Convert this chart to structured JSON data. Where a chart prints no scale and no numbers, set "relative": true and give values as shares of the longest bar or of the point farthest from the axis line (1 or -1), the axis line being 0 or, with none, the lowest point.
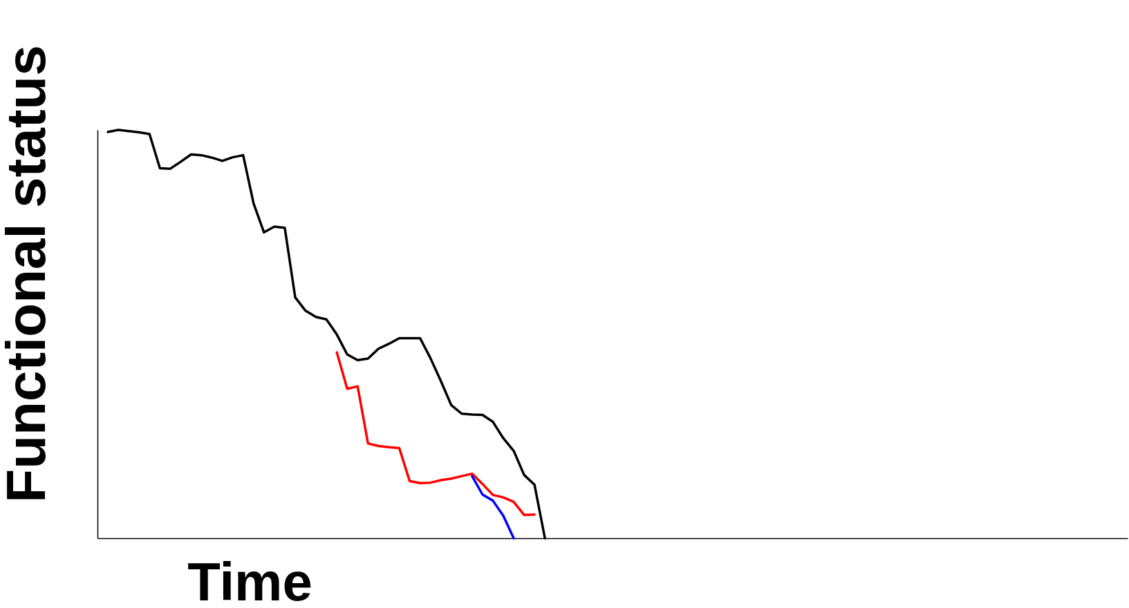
{
  "chart_data": {
    "type": "line",
    "relative": true,
    "xlabel": "Time",
    "ylabel": "Functional status",
    "marker": "none",
    "line_style": "solid",
    "categories": [
      null,
      null,
      null,
      null,
      null,
      null,
      null,
      null,
      null,
      null,
      null,
      null,
      null,
      null,
      null,
      null,
      null,
      null,
      null,
      null,
      null,
      null,
      null,
      null,
      null,
      null,
      null,
      null,
      null,
      null,
      null,
      null,
      null,
      null,
      null,
      null,
      null,
      null,
      null,
      null,
      null,
      null,
      null,
      null,
      null,
      null,
      null,
      null,
      null,
      null,
      null,
      null,
      null,
      null,
      null,
      null,
      null,
      null,
      null,
      null,
      null,
      null,
      null,
      null,
      null,
      null,
      null,
      null,
      null,
      null,
      null,
      null,
      null,
      null,
      null,
      null,
      null,
      null,
      null,
      null,
      null,
      null,
      null,
      null,
      null,
      null,
      null,
      null,
      null,
      null,
      null,
      null,
      null,
      null,
      null,
      null,
      null,
      null,
      null,
      null
    ],
    "series": [
      {
        "color": "#000000",
        "values": [
          null,
          0.995,
          1.0,
          0.997,
          0.994,
          0.99,
          0.906,
          0.905,
          0.922,
          0.94,
          0.938,
          0.932,
          0.924,
          0.933,
          0.938,
          0.82,
          0.749,
          0.763,
          0.76,
          0.59,
          0.557,
          0.542,
          0.536,
          0.499,
          0.45,
          0.436,
          0.44,
          0.464,
          0.476,
          0.49,
          0.49,
          0.49,
          0.441,
          0.385,
          0.326,
          0.305,
          0.303,
          0.302,
          0.285,
          0.245,
          0.214,
          0.155,
          0.131,
          0.0,
          null,
          null,
          null,
          null,
          null,
          null,
          null,
          null,
          null,
          null,
          null,
          null,
          null,
          null,
          null,
          null,
          null,
          null,
          null,
          null,
          null,
          null,
          null,
          null,
          null,
          null,
          null,
          null,
          null,
          null,
          null,
          null,
          null,
          null,
          null,
          null,
          null,
          null,
          null,
          null,
          null,
          null,
          null,
          null,
          null,
          null,
          null,
          null,
          null,
          null,
          null,
          null,
          null,
          null,
          null,
          null
        ]
      },
      {
        "color": "#ff0000",
        "values": [
          null,
          null,
          null,
          null,
          null,
          null,
          null,
          null,
          null,
          null,
          null,
          null,
          null,
          null,
          null,
          null,
          null,
          null,
          null,
          null,
          null,
          null,
          null,
          0.455,
          0.366,
          0.372,
          0.232,
          0.226,
          0.223,
          0.221,
          0.14,
          0.135,
          0.136,
          0.142,
          0.146,
          0.152,
          0.158,
          0.133,
          0.106,
          0.1,
          0.089,
          0.057,
          0.058,
          null,
          null,
          null,
          null,
          null,
          null,
          null,
          null,
          null,
          null,
          null,
          null,
          null,
          null,
          null,
          null,
          null,
          null,
          null,
          null,
          null,
          null,
          null,
          null,
          null,
          null,
          null,
          null,
          null,
          null,
          null,
          null,
          null,
          null,
          null,
          null,
          null,
          null,
          null,
          null,
          null,
          null,
          null,
          null,
          null,
          null,
          null,
          null,
          null,
          null,
          null,
          null,
          null,
          null,
          null,
          null,
          null
        ]
      },
      {
        "color": "#0000ff",
        "values": [
          null,
          null,
          null,
          null,
          null,
          null,
          null,
          null,
          null,
          null,
          null,
          null,
          null,
          null,
          null,
          null,
          null,
          null,
          null,
          null,
          null,
          null,
          null,
          null,
          null,
          null,
          null,
          null,
          null,
          null,
          null,
          null,
          null,
          null,
          null,
          null,
          0.152,
          0.107,
          0.092,
          0.055,
          0.0,
          null,
          null,
          null,
          null,
          null,
          null,
          null,
          null,
          null,
          null,
          null,
          null,
          null,
          null,
          null,
          null,
          null,
          null,
          null,
          null,
          null,
          null,
          null,
          null,
          null,
          null,
          null,
          null,
          null,
          null,
          null,
          null,
          null,
          null,
          null,
          null,
          null,
          null,
          null,
          null,
          null,
          null,
          null,
          null,
          null,
          null,
          null,
          null,
          null,
          null,
          null,
          null,
          null,
          null,
          null,
          null,
          null,
          null,
          null
        ]
      }
    ]
  }
}
